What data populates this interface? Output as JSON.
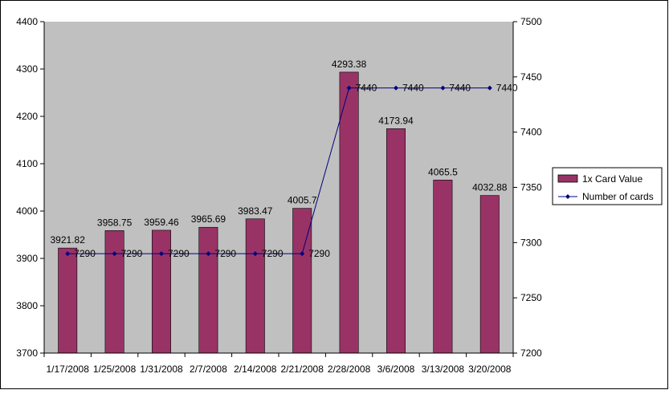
{
  "chart_data": {
    "type": "bar",
    "categories": [
      "1/17/2008",
      "1/25/2008",
      "1/31/2008",
      "2/7/2008",
      "2/14/2008",
      "2/21/2008",
      "2/28/2008",
      "3/6/2008",
      "3/13/2008",
      "3/20/2008"
    ],
    "series": [
      {
        "name": "1x Card Value",
        "type": "bar",
        "axis": "left",
        "color": "#993366",
        "values": [
          3921.82,
          3958.75,
          3959.46,
          3965.69,
          3983.47,
          4005.7,
          4293.38,
          4173.94,
          4065.5,
          4032.88
        ],
        "labels": [
          "3921.82",
          "3958.75",
          "3959.46",
          "3965.69",
          "3983.47",
          "4005.7",
          "4293.38",
          "4173.94",
          "4065.5",
          "4032.88"
        ]
      },
      {
        "name": "Number of cards",
        "type": "line",
        "axis": "right",
        "color": "#000080",
        "values": [
          7290,
          7290,
          7290,
          7290,
          7290,
          7290,
          7440,
          7440,
          7440,
          7440
        ],
        "labels": [
          "7290",
          "7290",
          "7290",
          "7290",
          "7290",
          "7290",
          "7440",
          "7440",
          "7440",
          "7440"
        ]
      }
    ],
    "title": "",
    "xlabel": "",
    "ylabel": "",
    "ylim": [
      3700,
      4400
    ],
    "y2lim": [
      7200,
      7500
    ],
    "yticks": [
      "3700",
      "3800",
      "3900",
      "4000",
      "4100",
      "4200",
      "4300",
      "4400"
    ],
    "y2ticks": [
      "7200",
      "7250",
      "7300",
      "7350",
      "7400",
      "7450",
      "7500"
    ],
    "grid": false,
    "plot_background": "#c0c0c0",
    "legend_position": "right"
  }
}
